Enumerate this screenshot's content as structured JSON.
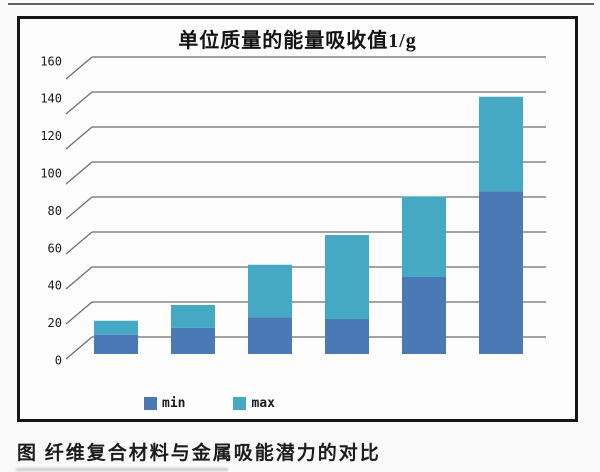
{
  "caption": "图 纤维复合材料与金属吸能潜力的对比",
  "chart_data": {
    "type": "bar",
    "stacked": true,
    "title": "单位质量的能量吸收值1/g",
    "categories": [
      "",
      "",
      "",
      "",
      "",
      ""
    ],
    "series": [
      {
        "name": "min",
        "color": "#4a79b6",
        "values": [
          11,
          15,
          21,
          20,
          44,
          93
        ]
      },
      {
        "name": "max",
        "color": "#45a9c3",
        "values": [
          19,
          28,
          51,
          68,
          90,
          147
        ]
      }
    ],
    "series_note": "'max' values are the bar-top totals; the teal segment spans from min to max",
    "xlabel": "",
    "ylabel": "",
    "ylim": [
      0,
      160
    ],
    "yticks": [
      0,
      20,
      40,
      60,
      80,
      100,
      120,
      140,
      160
    ],
    "grid": true,
    "grid_style": "3d-perspective-depth-ticks",
    "legend_position": "bottom",
    "legend": [
      "min",
      "max"
    ],
    "colors": {
      "grid": "#6e6e6e",
      "frame": "#161616",
      "tick_text": "#1a1a1a"
    }
  }
}
